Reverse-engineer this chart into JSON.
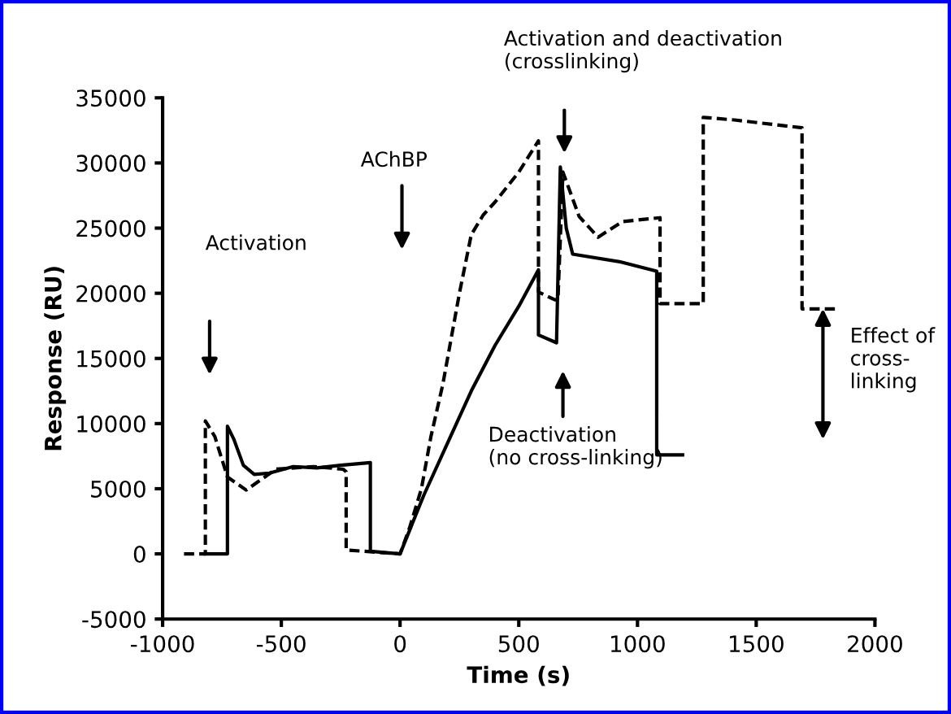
{
  "chart_data": {
    "type": "line",
    "xlabel": "Time (s)",
    "ylabel": "Response (RU)",
    "xlim": [
      -1000,
      2000
    ],
    "xticks": [
      -1000,
      -500,
      0,
      500,
      1000,
      1500,
      2000
    ],
    "ylim": [
      -5000,
      35000
    ],
    "yticks": [
      -5000,
      0,
      5000,
      10000,
      15000,
      20000,
      25000,
      30000,
      35000
    ],
    "grid": false,
    "legend": false,
    "marker": "none",
    "series": [
      {
        "color": "#000000",
        "line_style": "dashed",
        "x": [
          -910,
          -820,
          -820,
          -780,
          -727,
          -648,
          -523,
          -364,
          -240,
          -227,
          -227,
          0,
          40,
          90,
          130,
          180,
          250,
          300,
          350,
          400,
          500,
          583,
          583,
          652,
          665,
          686,
          754,
          834,
          936,
          1095,
          1095,
          1277,
          1277,
          1409,
          1693,
          1693,
          1845
        ],
        "values": [
          0,
          0,
          10200,
          9000,
          5900,
          4900,
          6500,
          6700,
          6500,
          6300,
          300,
          0,
          2000,
          5000,
          9000,
          13000,
          20000,
          24500,
          26000,
          27000,
          29300,
          31700,
          20100,
          19500,
          19500,
          29300,
          25900,
          24300,
          25500,
          25800,
          19200,
          19200,
          33500,
          33300,
          32700,
          18800,
          18800
        ]
      },
      {
        "color": "#000000",
        "line_style": "solid",
        "x": [
          -820,
          -727,
          -727,
          -700,
          -660,
          -614,
          -550,
          -450,
          -350,
          -250,
          -125,
          -125,
          0,
          100,
          200,
          300,
          400,
          500,
          583,
          583,
          659,
          675,
          700,
          727,
          931,
          1081,
          1081,
          1190
        ],
        "values": [
          0,
          0,
          9800,
          8800,
          6800,
          6100,
          6200,
          6700,
          6600,
          6800,
          7000,
          200,
          0,
          4500,
          8500,
          12500,
          16000,
          19000,
          21800,
          16800,
          16200,
          29700,
          25000,
          23000,
          22400,
          21700,
          7600,
          7600
        ]
      }
    ],
    "annotations": [
      "Activation",
      "AChBP",
      "Activation and deactivation\n(crosslinking)",
      "Deactivation\n(no cross-linking)",
      "Effect of\ncross-\nlinking"
    ]
  }
}
